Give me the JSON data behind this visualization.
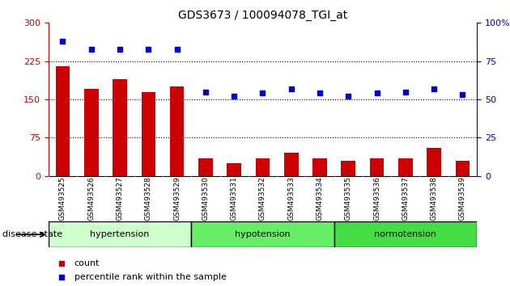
{
  "title": "GDS3673 / 100094078_TGI_at",
  "samples": [
    "GSM493525",
    "GSM493526",
    "GSM493527",
    "GSM493528",
    "GSM493529",
    "GSM493530",
    "GSM493531",
    "GSM493532",
    "GSM493533",
    "GSM493534",
    "GSM493535",
    "GSM493536",
    "GSM493537",
    "GSM493538",
    "GSM493539"
  ],
  "count_values": [
    215,
    170,
    190,
    165,
    175,
    35,
    25,
    35,
    45,
    35,
    30,
    35,
    35,
    55,
    30
  ],
  "percentile_values": [
    88,
    83,
    83,
    83,
    83,
    55,
    52,
    54,
    57,
    54,
    52,
    54,
    55,
    57,
    53
  ],
  "groups": [
    {
      "label": "hypertension",
      "start": 0,
      "end": 5,
      "color": "#CCFFCC"
    },
    {
      "label": "hypotension",
      "start": 5,
      "end": 10,
      "color": "#66EE66"
    },
    {
      "label": "normotension",
      "start": 10,
      "end": 15,
      "color": "#44DD44"
    }
  ],
  "ylim_left": [
    0,
    300
  ],
  "ylim_right": [
    0,
    100
  ],
  "yticks_left": [
    0,
    75,
    150,
    225,
    300
  ],
  "yticks_right_vals": [
    0,
    25,
    50,
    75,
    100
  ],
  "yticks_right_labels": [
    "0",
    "25",
    "50",
    "75",
    "100%"
  ],
  "bar_color": "#CC0000",
  "dot_color": "#0000CC",
  "bar_width": 0.5,
  "dot_size": 25,
  "dot_marker": "s",
  "grid_color": "black",
  "grid_levels": [
    75,
    150,
    225
  ],
  "bg_color": "#FFFFFF",
  "tick_bg": "#D3D3D3",
  "left_axis_color": "#CC0000",
  "right_axis_color": "#0000CC",
  "legend_count_label": "count",
  "legend_pct_label": "percentile rank within the sample",
  "disease_state_label": "disease state"
}
